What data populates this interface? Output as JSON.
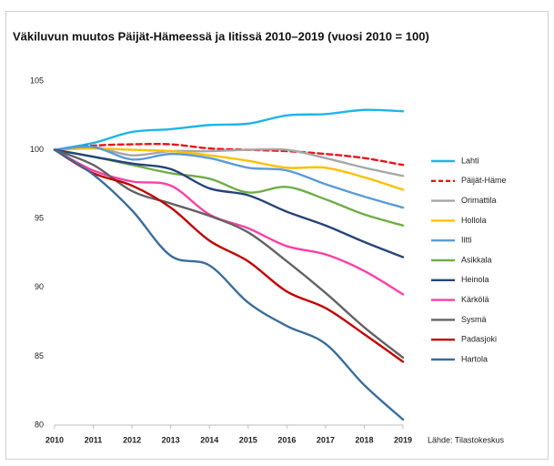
{
  "chart_data": {
    "type": "line",
    "title": "Väkiluvun muutos Päijät-Hämeessä ja Iitissä 2010–2019 (vuosi 2010 = 100)",
    "source": "Lähde: Tilastokeskus",
    "x": [
      2010,
      2011,
      2012,
      2013,
      2014,
      2015,
      2016,
      2017,
      2018,
      2019
    ],
    "xlim": [
      2010,
      2019
    ],
    "xticks": [
      2010,
      2011,
      2012,
      2013,
      2014,
      2015,
      2016,
      2017,
      2018,
      2019
    ],
    "ylim": [
      80,
      105
    ],
    "yticks": [
      80,
      85,
      90,
      95,
      100,
      105
    ],
    "grid": false,
    "legend": "right",
    "series": [
      {
        "name": "Lahti",
        "color": "#1fb5e8",
        "values": [
          100,
          100.5,
          101.3,
          101.5,
          101.8,
          101.9,
          102.5,
          102.6,
          102.9,
          102.8
        ]
      },
      {
        "name": "Päijät-Häme",
        "color": "#e8141b",
        "dash": true,
        "values": [
          100,
          100.3,
          100.4,
          100.4,
          100.1,
          100.0,
          99.9,
          99.7,
          99.4,
          98.9
        ]
      },
      {
        "name": "Orimattila",
        "color": "#a6a6a6",
        "values": [
          100,
          100.2,
          99.6,
          99.9,
          99.9,
          100.0,
          100.0,
          99.4,
          98.7,
          98.1
        ]
      },
      {
        "name": "Hollola",
        "color": "#ffc000",
        "values": [
          100,
          100.1,
          100.0,
          99.9,
          99.6,
          99.2,
          98.7,
          98.7,
          98.0,
          97.1
        ]
      },
      {
        "name": "Iitti",
        "color": "#5b9bd5",
        "values": [
          100,
          100.2,
          99.3,
          99.7,
          99.4,
          98.7,
          98.5,
          97.5,
          96.6,
          95.8
        ]
      },
      {
        "name": "Asikkala",
        "color": "#70ad47",
        "values": [
          100,
          99.5,
          98.9,
          98.3,
          97.9,
          96.9,
          97.3,
          96.4,
          95.3,
          94.5
        ]
      },
      {
        "name": "Heinola",
        "color": "#264478",
        "values": [
          100,
          99.5,
          99.0,
          98.6,
          97.2,
          96.7,
          95.5,
          94.5,
          93.3,
          92.2
        ]
      },
      {
        "name": "Kärkölä",
        "color": "#ff3fa4",
        "values": [
          100,
          98.5,
          97.7,
          97.4,
          95.3,
          94.3,
          93.0,
          92.4,
          91.2,
          89.5
        ]
      },
      {
        "name": "Sysmä",
        "color": "#636363",
        "values": [
          100,
          98.9,
          97.0,
          96.1,
          95.2,
          94.0,
          91.9,
          89.6,
          87.1,
          84.9
        ]
      },
      {
        "name": "Padasjoki",
        "color": "#c00000",
        "values": [
          100,
          98.3,
          97.4,
          95.8,
          93.4,
          91.9,
          89.7,
          88.5,
          86.6,
          84.6
        ]
      },
      {
        "name": "Hartola",
        "color": "#3a6d9a",
        "values": [
          100,
          98.2,
          95.6,
          92.3,
          91.6,
          88.9,
          87.2,
          85.9,
          82.9,
          80.4
        ]
      }
    ]
  }
}
